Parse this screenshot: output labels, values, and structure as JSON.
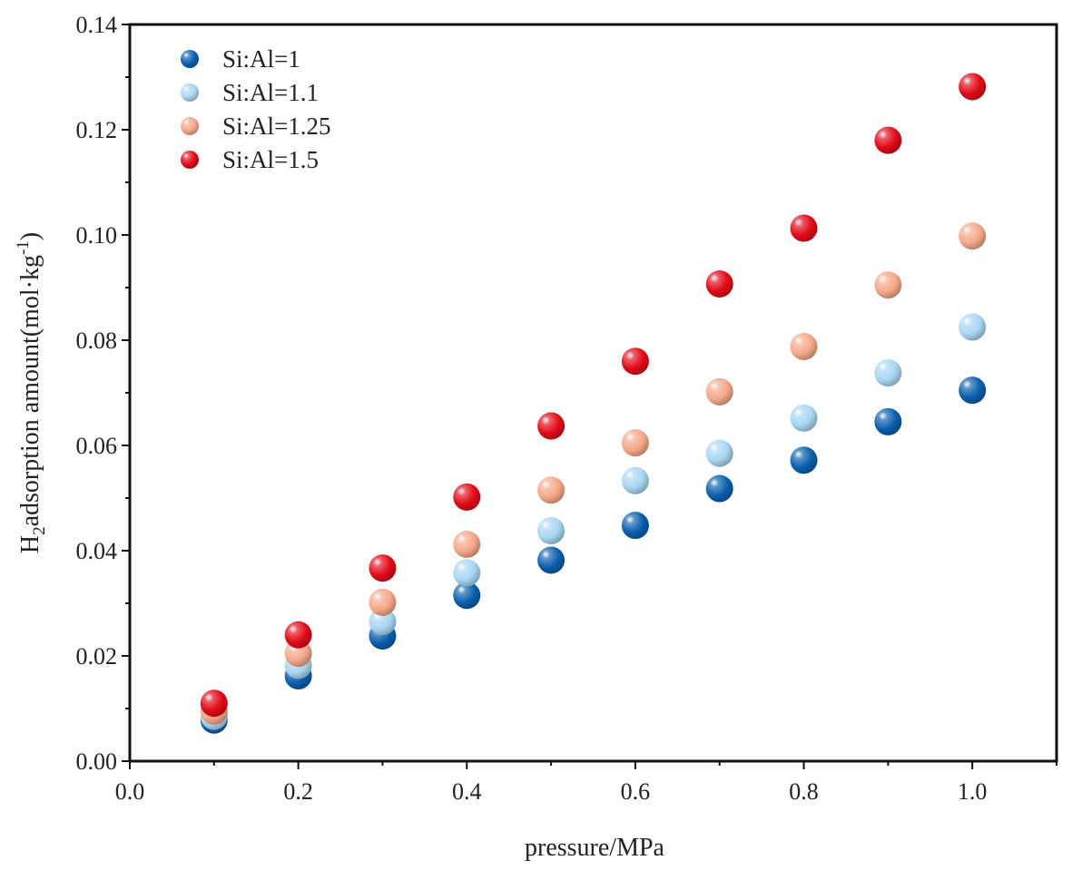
{
  "chart_data": {
    "type": "scatter",
    "title": "",
    "xlabel": "pressure/MPa",
    "ylabel": {
      "main": "H",
      "subscript": "2",
      "text": "adsorption amount(mol·kg",
      "superscript": "-1",
      "close": ")"
    },
    "xlim": [
      0.0,
      1.1
    ],
    "ylim": [
      0.0,
      0.14
    ],
    "xticks": [
      "0.0",
      "0.2",
      "0.4",
      "0.6",
      "0.8",
      "1.0"
    ],
    "xtick_values": [
      0.0,
      0.2,
      0.4,
      0.6,
      0.8,
      1.0
    ],
    "yticks": [
      "0.00",
      "0.02",
      "0.04",
      "0.06",
      "0.08",
      "0.10",
      "0.12",
      "0.14"
    ],
    "ytick_values": [
      0.0,
      0.02,
      0.04,
      0.06,
      0.08,
      0.1,
      0.12,
      0.14
    ],
    "legend_position": "top-left",
    "grid": false,
    "x": [
      0.1,
      0.2,
      0.3,
      0.4,
      0.5,
      0.6,
      0.7,
      0.8,
      0.9,
      1.0
    ],
    "series": [
      {
        "name": "Si:Al=1",
        "color": "#0a5fae",
        "values": [
          0.0078,
          0.0162,
          0.0238,
          0.0315,
          0.0382,
          0.0448,
          0.0518,
          0.0572,
          0.0645,
          0.0705
        ]
      },
      {
        "name": "Si:Al=1.1",
        "color": "#a9d6f2",
        "values": [
          0.0085,
          0.0182,
          0.0265,
          0.0358,
          0.0438,
          0.0533,
          0.0585,
          0.0652,
          0.0738,
          0.0825
        ]
      },
      {
        "name": "Si:Al=1.25",
        "color": "#f5a98a",
        "values": [
          0.0095,
          0.0205,
          0.0302,
          0.0412,
          0.0515,
          0.0605,
          0.0702,
          0.0788,
          0.0905,
          0.0998
        ]
      },
      {
        "name": "Si:Al=1.5",
        "color": "#e20b18",
        "values": [
          0.011,
          0.024,
          0.0367,
          0.0502,
          0.0637,
          0.076,
          0.0907,
          0.1013,
          0.118,
          0.1282
        ]
      }
    ]
  }
}
